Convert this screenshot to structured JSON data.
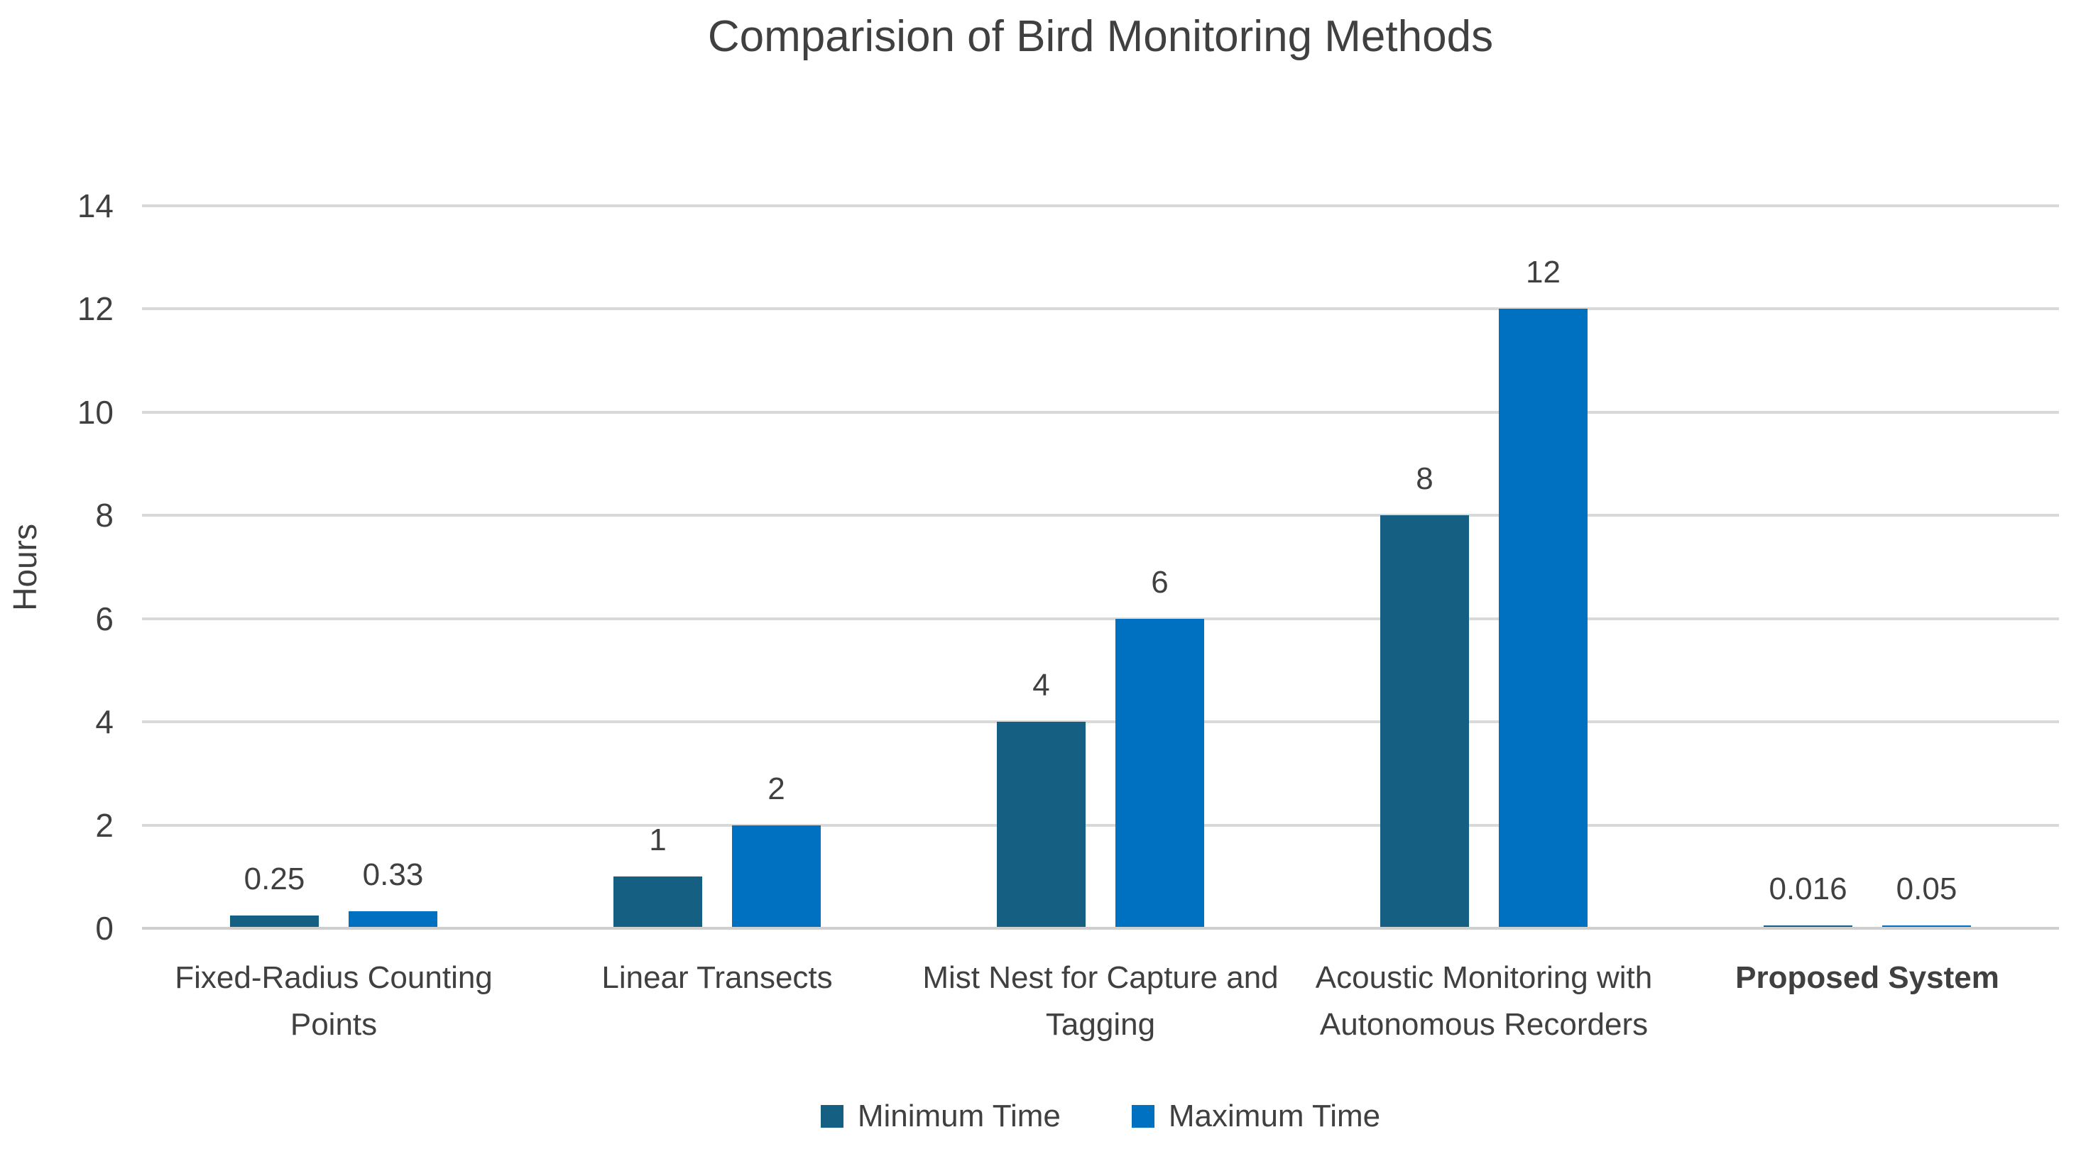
{
  "chart_data": {
    "type": "bar",
    "title": "Comparision of Bird Monitoring Methods",
    "xlabel": "",
    "ylabel": "Hours",
    "ylim": [
      0,
      14
    ],
    "yticks": [
      0,
      2,
      4,
      6,
      8,
      10,
      12,
      14
    ],
    "grid": true,
    "legend_position": "bottom",
    "categories": [
      {
        "label": "Fixed-Radius Counting Points",
        "bold": false
      },
      {
        "label": "Linear Transects",
        "bold": false
      },
      {
        "label": "Mist Nest for Capture and Tagging",
        "bold": false
      },
      {
        "label": "Acoustic Monitoring with Autonomous Recorders",
        "bold": false
      },
      {
        "label": "Proposed System",
        "bold": true
      }
    ],
    "series": [
      {
        "name": "Minimum Time",
        "color": "#156082",
        "values": [
          0.25,
          1,
          4,
          8,
          0.016
        ],
        "labels": [
          "0.25",
          "1",
          "4",
          "8",
          "0.016"
        ]
      },
      {
        "name": "Maximum Time",
        "color": "#0070C0",
        "values": [
          0.33,
          2,
          6,
          12,
          0.05
        ],
        "labels": [
          "0.33",
          "2",
          "6",
          "12",
          "0.05"
        ]
      }
    ]
  },
  "colors": {
    "gridline": "#D9D9D9",
    "axis_line": "#CFCFCF",
    "text": "#404040"
  }
}
